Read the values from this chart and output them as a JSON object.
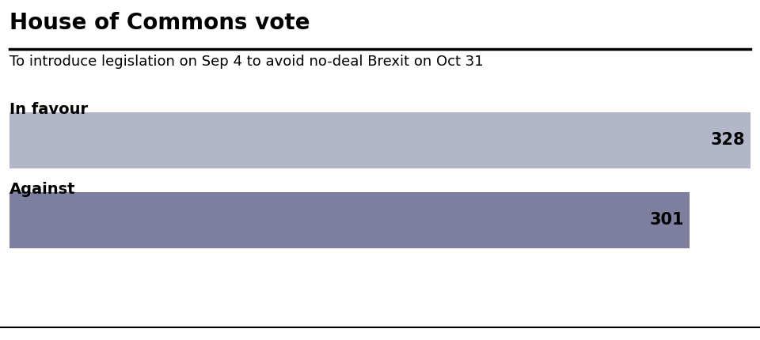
{
  "title": "House of Commons vote",
  "subtitle": "To introduce legislation on Sep 4 to avoid no-deal Brexit on Oct 31",
  "favour_label": "In favour",
  "against_label": "Against",
  "favour_value": 328,
  "against_value": 301,
  "max_value": 340,
  "favour_color": "#b2b6c8",
  "against_color": "#7e7f9e",
  "background_color": "#ffffff",
  "title_fontsize": 20,
  "subtitle_fontsize": 13,
  "label_fontsize": 14,
  "value_fontsize": 15
}
